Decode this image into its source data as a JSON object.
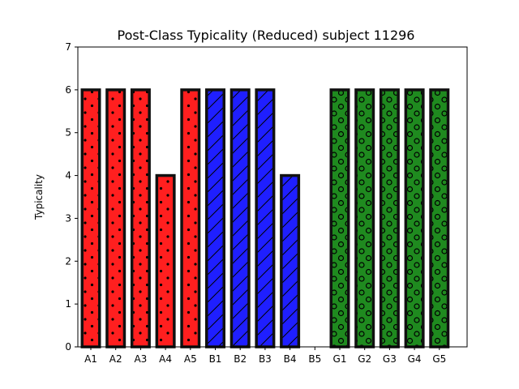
{
  "chart_data": {
    "type": "bar",
    "title": "Post-Class Typicality (Reduced) subject 11296",
    "xlabel": "",
    "ylabel": "Typicality",
    "ylim": [
      0,
      7
    ],
    "yticks": [
      0,
      1,
      2,
      3,
      4,
      5,
      6,
      7
    ],
    "grid": false,
    "categories": [
      "A1",
      "A2",
      "A3",
      "A4",
      "A5",
      "B1",
      "B2",
      "B3",
      "B4",
      "B5",
      "G1",
      "G2",
      "G3",
      "G4",
      "G5"
    ],
    "values": [
      6,
      6,
      6,
      4,
      6,
      6,
      6,
      6,
      4,
      0,
      6,
      6,
      6,
      6,
      6
    ],
    "groups": [
      {
        "prefix": "A",
        "color": "#ff1f1f",
        "pattern": "dots"
      },
      {
        "prefix": "B",
        "color": "#1f1fff",
        "pattern": "diagonal-hatch"
      },
      {
        "prefix": "G",
        "color": "#1f8a1f",
        "pattern": "circles"
      }
    ],
    "bar_edge_color": "#111111"
  }
}
